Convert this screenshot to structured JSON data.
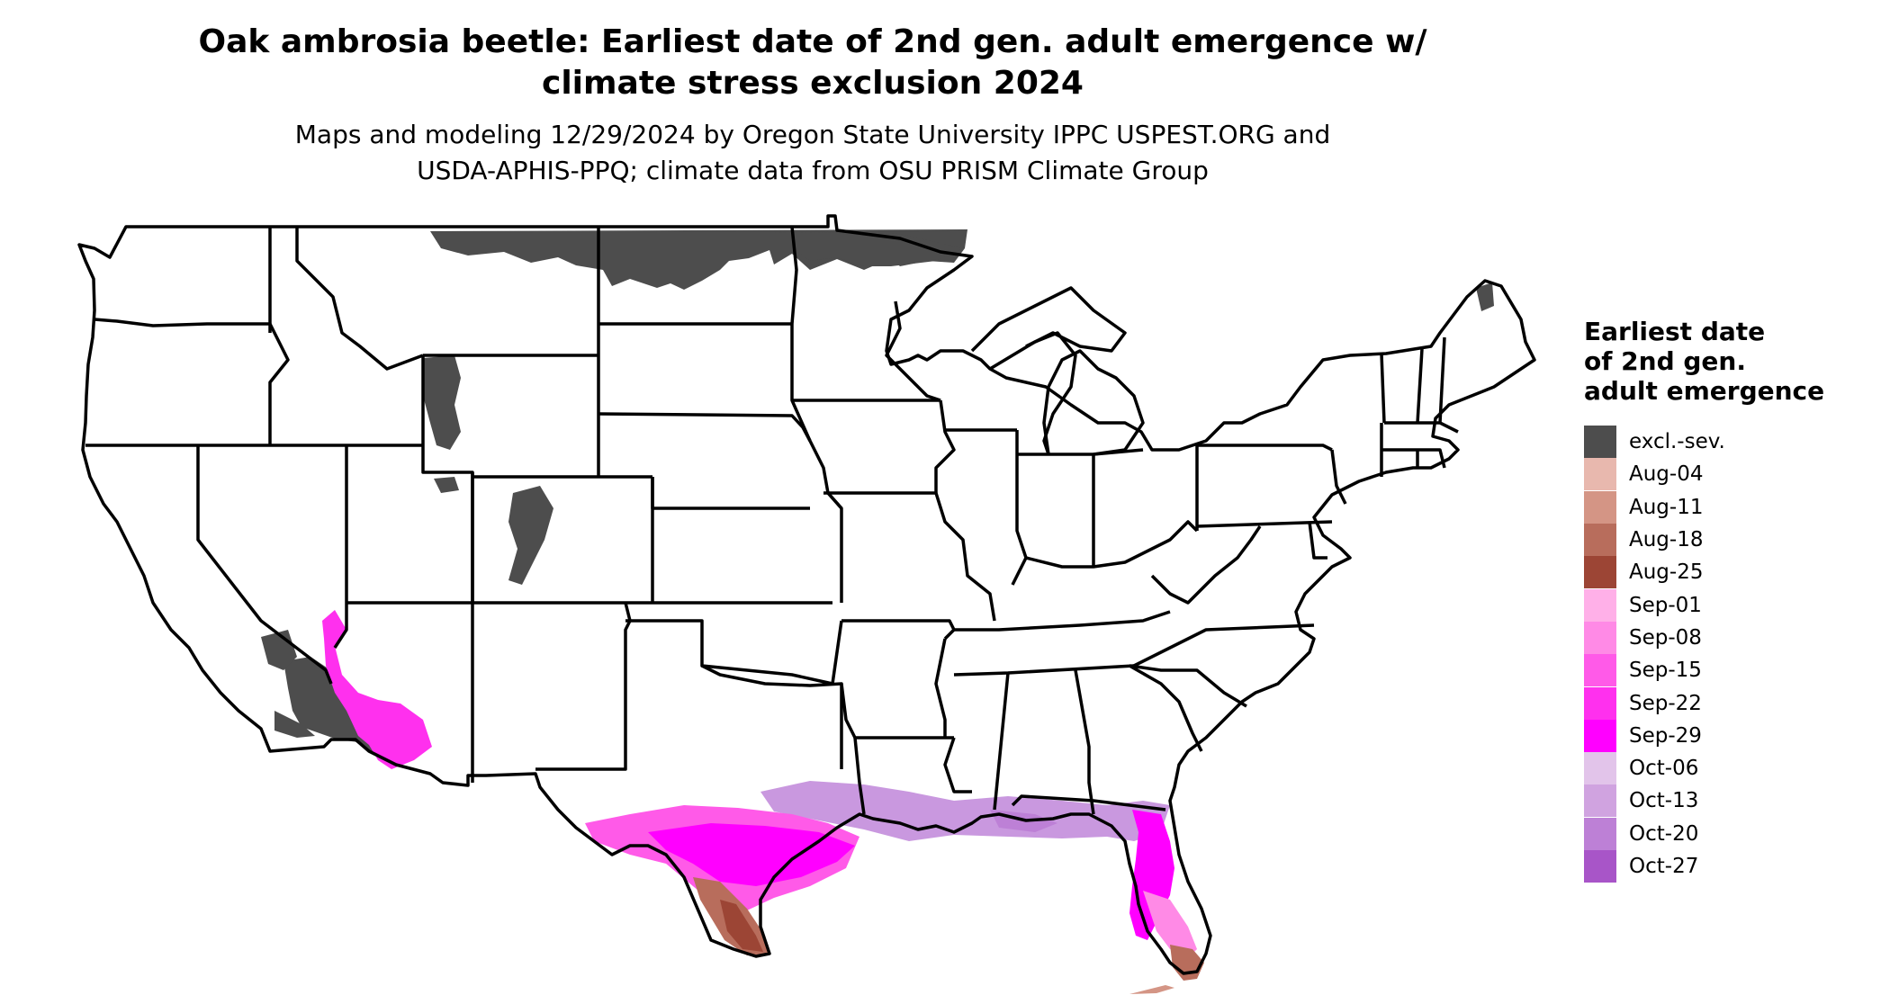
{
  "title": {
    "line1": "Oak ambrosia beetle: Earliest date of 2nd gen. adult emergence w/",
    "line2": "climate stress exclusion 2024"
  },
  "subtitle": {
    "line1": "Maps and modeling 12/29/2024 by Oregon State University IPPC USPEST.ORG and",
    "line2": "USDA-APHIS-PPQ; climate data from OSU PRISM Climate Group"
  },
  "legend": {
    "title_line1": "Earliest date",
    "title_line2": "of 2nd gen.",
    "title_line3": "adult emergence",
    "items": [
      {
        "label": "excl.-sev.",
        "color": "#4d4d4d"
      },
      {
        "label": "Aug-04",
        "color": "#e8b8ae"
      },
      {
        "label": "Aug-11",
        "color": "#d49585"
      },
      {
        "label": "Aug-18",
        "color": "#b86d5c"
      },
      {
        "label": "Aug-25",
        "color": "#9c4535"
      },
      {
        "label": "Sep-01",
        "color": "#ffb0e8"
      },
      {
        "label": "Sep-08",
        "color": "#ff8ae6"
      },
      {
        "label": "Sep-15",
        "color": "#ff5ae8"
      },
      {
        "label": "Sep-22",
        "color": "#ff30ee"
      },
      {
        "label": "Sep-29",
        "color": "#ff00ff"
      },
      {
        "label": "Oct-06",
        "color": "#e2c4ea"
      },
      {
        "label": "Oct-13",
        "color": "#d0a3e0"
      },
      {
        "label": "Oct-20",
        "color": "#bd80d6"
      },
      {
        "label": "Oct-27",
        "color": "#a855c8"
      }
    ]
  }
}
